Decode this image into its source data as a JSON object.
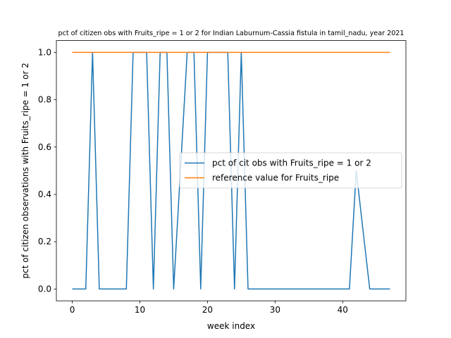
{
  "chart_data": {
    "type": "line",
    "title": "pct of citizen obs with Fruits_ripe = 1 or 2 for Indian Laburnum-Cassia fistula in tamil_nadu, year 2021",
    "xlabel": "week index",
    "ylabel": "pct of citizen observations with Fruits_ripe = 1 or 2",
    "xlim": [
      -2.35,
      49.35
    ],
    "ylim": [
      -0.05,
      1.05
    ],
    "xticks": [
      0,
      10,
      20,
      30,
      40
    ],
    "yticks": [
      0.0,
      0.2,
      0.4,
      0.6,
      0.8,
      1.0
    ],
    "xtick_labels": [
      "0",
      "10",
      "20",
      "30",
      "40"
    ],
    "ytick_labels": [
      "0.0",
      "0.2",
      "0.4",
      "0.6",
      "0.8",
      "1.0"
    ],
    "grid": false,
    "legend_position": "center-right",
    "x": [
      0,
      1,
      2,
      3,
      4,
      5,
      6,
      7,
      8,
      9,
      10,
      11,
      12,
      13,
      14,
      15,
      16,
      17,
      18,
      19,
      20,
      21,
      22,
      23,
      24,
      25,
      26,
      27,
      28,
      29,
      30,
      31,
      32,
      33,
      34,
      35,
      36,
      37,
      38,
      39,
      40,
      41,
      42,
      43,
      44,
      45,
      46,
      47
    ],
    "series": [
      {
        "name": "pct of cit obs with Fruits_ripe = 1 or 2",
        "color": "#1f77b4",
        "values": [
          0,
          0,
          0,
          1,
          0,
          0,
          0,
          0,
          0,
          1,
          1,
          1,
          0,
          1,
          1,
          0,
          0.5,
          1,
          1,
          0,
          1,
          1,
          1,
          1,
          0,
          1,
          0,
          0,
          0,
          0,
          0,
          0,
          0,
          0,
          0,
          0,
          0,
          0,
          0,
          0,
          0,
          0,
          0.5,
          0.25,
          0,
          0,
          0,
          0
        ]
      },
      {
        "name": "reference value for Fruits_ripe",
        "color": "#ff7f0e",
        "values": [
          1,
          1,
          1,
          1,
          1,
          1,
          1,
          1,
          1,
          1,
          1,
          1,
          1,
          1,
          1,
          1,
          1,
          1,
          1,
          1,
          1,
          1,
          1,
          1,
          1,
          1,
          1,
          1,
          1,
          1,
          1,
          1,
          1,
          1,
          1,
          1,
          1,
          1,
          1,
          1,
          1,
          1,
          1,
          1,
          1,
          1,
          1,
          1
        ]
      }
    ]
  }
}
